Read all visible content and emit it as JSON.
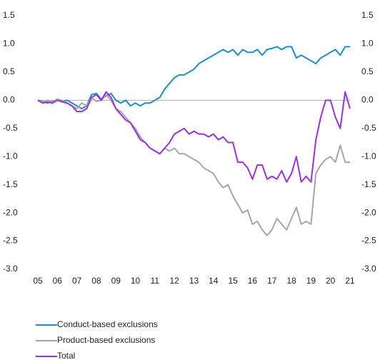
{
  "chart_data": {
    "type": "line",
    "x": [
      5,
      5.25,
      5.5,
      5.75,
      6,
      6.25,
      6.5,
      6.75,
      7,
      7.25,
      7.5,
      7.75,
      8,
      8.25,
      8.5,
      8.75,
      9,
      9.25,
      9.5,
      9.75,
      10,
      10.25,
      10.5,
      10.75,
      11,
      11.25,
      11.5,
      11.75,
      12,
      12.25,
      12.5,
      12.75,
      13,
      13.25,
      13.5,
      13.75,
      14,
      14.25,
      14.5,
      14.75,
      15,
      15.25,
      15.5,
      15.75,
      16,
      16.25,
      16.5,
      16.75,
      17,
      17.25,
      17.5,
      17.75,
      18,
      18.25,
      18.5,
      18.75,
      19,
      19.25,
      19.5,
      19.75,
      20,
      20.25,
      20.5,
      20.75,
      21
    ],
    "series": [
      {
        "name": "Conduct-based exclusions",
        "color": "#1a8fc9",
        "values": [
          0,
          -0.02,
          -0.05,
          -0.02,
          0,
          -0.02,
          0,
          -0.05,
          -0.1,
          -0.15,
          -0.1,
          0.1,
          0.12,
          0.02,
          0.08,
          0.12,
          0,
          -0.05,
          0,
          -0.1,
          -0.05,
          -0.1,
          -0.05,
          -0.05,
          0,
          0.05,
          0.2,
          0.3,
          0.4,
          0.45,
          0.45,
          0.5,
          0.55,
          0.65,
          0.7,
          0.75,
          0.8,
          0.85,
          0.9,
          0.85,
          0.9,
          0.8,
          0.9,
          0.85,
          0.85,
          0.9,
          0.8,
          0.9,
          0.92,
          0.95,
          0.9,
          0.95,
          0.95,
          0.75,
          0.8,
          0.75,
          0.7,
          0.65,
          0.75,
          0.8,
          0.85,
          0.9,
          0.8,
          0.95,
          0.95
        ]
      },
      {
        "name": "Product-based exclusions",
        "color": "#a6a6a6",
        "values": [
          0,
          -0.03,
          0,
          -0.03,
          0.02,
          0,
          -0.05,
          -0.1,
          -0.15,
          -0.05,
          -0.1,
          0.05,
          -0.02,
          0,
          0.1,
          0,
          -0.15,
          -0.2,
          -0.3,
          -0.4,
          -0.5,
          -0.65,
          -0.75,
          -0.85,
          -0.9,
          -0.95,
          -0.85,
          -0.9,
          -0.85,
          -0.95,
          -0.95,
          -1.0,
          -1.05,
          -1.1,
          -1.2,
          -1.25,
          -1.3,
          -1.45,
          -1.55,
          -1.5,
          -1.7,
          -1.85,
          -2.0,
          -1.95,
          -2.2,
          -2.15,
          -2.3,
          -2.4,
          -2.3,
          -2.1,
          -2.2,
          -2.3,
          -2.1,
          -1.9,
          -2.2,
          -2.15,
          -2.2,
          -1.3,
          -1.15,
          -1.05,
          -1.0,
          -1.1,
          -0.8,
          -1.1,
          -1.1
        ]
      },
      {
        "name": "Total",
        "color": "#9b30e0",
        "values": [
          0,
          -0.05,
          -0.03,
          -0.05,
          0,
          -0.03,
          -0.05,
          -0.1,
          -0.2,
          -0.2,
          -0.15,
          0.05,
          0.1,
          0,
          0.15,
          0.05,
          -0.15,
          -0.25,
          -0.35,
          -0.4,
          -0.55,
          -0.7,
          -0.75,
          -0.85,
          -0.9,
          -0.95,
          -0.85,
          -0.75,
          -0.6,
          -0.55,
          -0.5,
          -0.6,
          -0.55,
          -0.6,
          -0.6,
          -0.65,
          -0.6,
          -0.7,
          -0.65,
          -0.75,
          -0.75,
          -1.1,
          -1.1,
          -1.2,
          -1.4,
          -1.15,
          -1.15,
          -1.4,
          -1.35,
          -1.4,
          -1.25,
          -1.45,
          -1.3,
          -1.0,
          -1.45,
          -1.35,
          -1.45,
          -0.7,
          -0.3,
          0,
          0,
          -0.3,
          -0.5,
          0.15,
          -0.15
        ]
      }
    ],
    "xlim": [
      5,
      21
    ],
    "xticks": [
      {
        "value": 5,
        "label": "05"
      },
      {
        "value": 6,
        "label": "06"
      },
      {
        "value": 7,
        "label": "07"
      },
      {
        "value": 8,
        "label": "08"
      },
      {
        "value": 9,
        "label": "09"
      },
      10,
      11,
      12,
      13,
      14,
      15,
      16,
      17,
      18,
      19,
      20,
      21
    ],
    "ylim": [
      -3,
      1.5
    ],
    "yticks": [
      1.5,
      {
        "value": 1,
        "label": "1.0"
      },
      0.5,
      {
        "value": 0,
        "label": "0.0"
      },
      -0.5,
      {
        "value": -1,
        "label": "-1.0"
      },
      -1.5,
      {
        "value": -2,
        "label": "-2.0"
      },
      -2.5,
      {
        "value": -3,
        "label": "-3.0"
      }
    ],
    "y2lim": [
      -3,
      1.5
    ],
    "y2ticks": [
      1.5,
      {
        "value": 1,
        "label": "1.0"
      },
      0.5,
      {
        "value": 0,
        "label": "0.0"
      },
      -0.5,
      {
        "value": -1,
        "label": "-1.0"
      },
      -1.5,
      {
        "value": -2,
        "label": "-2.0"
      },
      -2.5,
      {
        "value": -3,
        "label": "-3.0"
      }
    ],
    "grid": false
  }
}
